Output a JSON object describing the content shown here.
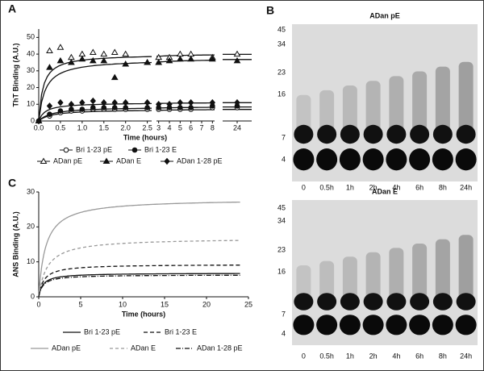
{
  "panels": [
    "A",
    "B",
    "C"
  ],
  "chart_data": [
    {
      "type": "scatter",
      "ylabel": "ThT Binding (A.U.)",
      "xlabel": "Time (hours)",
      "ylim": [
        0,
        55
      ],
      "yticks": [
        0,
        10,
        20,
        30,
        40,
        50
      ],
      "xlim_segments": [
        [
          0,
          2.6
        ],
        [
          2.8,
          8.2
        ],
        [
          23.5,
          24.5
        ]
      ],
      "xticks": [
        {
          "value": 0,
          "label": "0.0"
        },
        {
          "value": 0.5,
          "label": "0.5"
        },
        {
          "value": 1,
          "label": "1.0"
        },
        {
          "value": 1.5,
          "label": "1.5"
        },
        {
          "value": 2,
          "label": "2.0"
        },
        {
          "value": 2.5,
          "label": "2.5"
        },
        3,
        4,
        5,
        6,
        7,
        8,
        24
      ],
      "x": [
        0,
        0.25,
        0.5,
        0.75,
        1,
        1.25,
        1.5,
        1.75,
        2,
        2.5,
        3,
        4,
        5,
        6,
        8,
        24
      ],
      "series": [
        {
          "name": "Bri 1-23 pE",
          "marker": "open-circle",
          "color": "#111",
          "fit": [
            7,
            0.3
          ],
          "values": [
            0,
            3,
            5,
            6,
            6,
            7,
            7,
            7,
            7,
            7,
            7,
            7,
            7,
            7,
            8,
            8
          ]
        },
        {
          "name": "Bri 1-23 E",
          "marker": "circle",
          "color": "#111",
          "fit": [
            8.5,
            0.3
          ],
          "values": [
            0,
            4,
            6,
            7,
            7,
            8,
            8,
            8,
            8,
            8,
            8,
            8,
            8,
            8,
            9,
            9
          ]
        },
        {
          "name": "ADan pE",
          "marker": "open-triangle",
          "color": "#111",
          "fit": [
            40,
            0.1
          ],
          "values": [
            0,
            42,
            44,
            38,
            40,
            41,
            40,
            41,
            40,
            35,
            38,
            38,
            40,
            40,
            38,
            40
          ]
        },
        {
          "name": "ADan E",
          "marker": "triangle",
          "color": "#111",
          "fit": [
            37,
            0.15
          ],
          "values": [
            0,
            32,
            36,
            35,
            37,
            36,
            36,
            26,
            34,
            35,
            35,
            36,
            37,
            37,
            37,
            36
          ]
        },
        {
          "name": "ADan 1-28 pE",
          "marker": "diamond",
          "color": "#111",
          "fit": [
            11,
            0.15
          ],
          "values": [
            0,
            9,
            11,
            10,
            11,
            12,
            11,
            11,
            11,
            11,
            10,
            10,
            11,
            11,
            11,
            11
          ]
        }
      ]
    },
    {
      "type": "line",
      "ylabel": "ANS Binding (A.U.)",
      "xlabel": "Time (hours)",
      "xlim": [
        0,
        25
      ],
      "xticks": [
        0,
        5,
        10,
        15,
        20,
        25
      ],
      "ylim": [
        0,
        30
      ],
      "yticks": [
        0,
        10,
        20,
        30
      ],
      "series": [
        {
          "name": "Bri 1-23 pE",
          "color": "#111",
          "dash": "none",
          "plateau": 6.8,
          "half_time": 0.5
        },
        {
          "name": "Bri 1-23 E",
          "color": "#111",
          "dash": "5,3",
          "plateau": 9.3,
          "half_time": 0.6
        },
        {
          "name": "ADan pE",
          "color": "#999",
          "dash": "none",
          "plateau": 28,
          "half_time": 0.8
        },
        {
          "name": "ADan E",
          "color": "#999",
          "dash": "4,3",
          "plateau": 16.8,
          "half_time": 1
        },
        {
          "name": "ADan 1-28 pE",
          "color": "#111",
          "dash": "6,2,1,2",
          "plateau": 6.3,
          "half_time": 0.5
        }
      ]
    }
  ],
  "gels": [
    {
      "title": "ADan pE",
      "markers": [
        "45",
        "34",
        "23",
        "16",
        "7",
        "4"
      ],
      "lanes": [
        "0",
        "0.5h",
        "1h",
        "2h",
        "4h",
        "6h",
        "8h",
        "24h"
      ]
    },
    {
      "title": "ADan E",
      "markers": [
        "45",
        "34",
        "23",
        "16",
        "7",
        "4"
      ],
      "lanes": [
        "0",
        "0.5h",
        "1h",
        "2h",
        "4h",
        "6h",
        "8h",
        "24h"
      ]
    }
  ]
}
